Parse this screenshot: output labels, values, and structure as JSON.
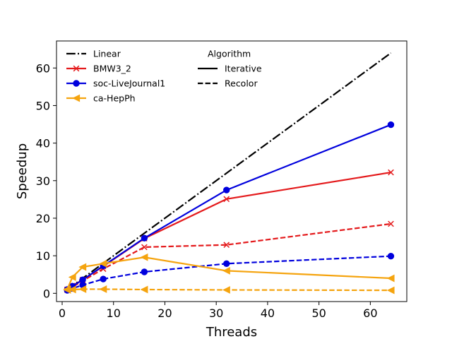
{
  "chart_data": {
    "type": "line",
    "xlabel": "Threads",
    "ylabel": "Speedup",
    "xlim": [
      -1.1,
      67.1
    ],
    "ylim": [
      -2.2,
      67.2
    ],
    "xticks": [
      0,
      10,
      20,
      30,
      40,
      50,
      60
    ],
    "yticks": [
      0,
      10,
      20,
      30,
      40,
      50,
      60
    ],
    "grid": false,
    "legend_placement": "top-left",
    "style_legend_title": "Algorithm",
    "series": [
      {
        "name": "Linear",
        "color": "#000000",
        "dash": "dashdot",
        "marker": "none",
        "x": [
          1,
          64
        ],
        "y": [
          1,
          64
        ]
      },
      {
        "name": "BMW3_2",
        "color": "#e41a1c",
        "marker": "x",
        "style": "Iterative",
        "x": [
          1,
          2,
          4,
          8,
          16,
          32,
          64
        ],
        "y": [
          1.0,
          2.0,
          3.6,
          7.2,
          14.6,
          25.1,
          32.2
        ]
      },
      {
        "name": "BMW3_2",
        "color": "#e41a1c",
        "marker": "x",
        "style": "Recolor",
        "x": [
          1,
          2,
          4,
          8,
          16,
          32,
          64
        ],
        "y": [
          0.9,
          1.7,
          3.3,
          6.5,
          12.3,
          12.9,
          18.5
        ]
      },
      {
        "name": "soc-LiveJournal1",
        "color": "#0000dd",
        "marker": "circle",
        "style": "Iterative",
        "x": [
          1,
          2,
          4,
          8,
          16,
          32,
          64
        ],
        "y": [
          1.0,
          1.9,
          3.6,
          7.3,
          14.7,
          27.5,
          44.9
        ]
      },
      {
        "name": "soc-LiveJournal1",
        "color": "#0000dd",
        "marker": "circle",
        "style": "Recolor",
        "x": [
          1,
          2,
          4,
          8,
          16,
          32,
          64
        ],
        "y": [
          0.8,
          1.3,
          2.2,
          3.8,
          5.7,
          7.9,
          9.9
        ]
      },
      {
        "name": "ca-HepPh",
        "color": "#f5a40f",
        "marker": "triangle-left",
        "style": "Iterative",
        "x": [
          1,
          2,
          4,
          8,
          16,
          32,
          64
        ],
        "y": [
          1.1,
          4.3,
          7.0,
          7.9,
          9.6,
          6.0,
          4.0
        ]
      },
      {
        "name": "ca-HepPh",
        "color": "#f5a40f",
        "marker": "triangle-left",
        "style": "Recolor",
        "x": [
          1,
          2,
          4,
          8,
          16,
          32,
          64
        ],
        "y": [
          0.9,
          1.0,
          1.1,
          1.1,
          1.0,
          0.9,
          0.8
        ]
      }
    ],
    "legend": {
      "entries": [
        {
          "label": "Linear",
          "color": "#000000",
          "dash": "dashdot",
          "marker": "none"
        },
        {
          "label": "BMW3_2",
          "color": "#e41a1c",
          "dash": "solid",
          "marker": "x"
        },
        {
          "label": "soc-LiveJournal1",
          "color": "#0000dd",
          "dash": "solid",
          "marker": "circle"
        },
        {
          "label": "ca-HepPh",
          "color": "#f5a40f",
          "dash": "solid",
          "marker": "triangle-left"
        }
      ],
      "style_entries": [
        {
          "label": "Iterative",
          "dash": "solid"
        },
        {
          "label": "Recolor",
          "dash": "dashed"
        }
      ]
    }
  }
}
